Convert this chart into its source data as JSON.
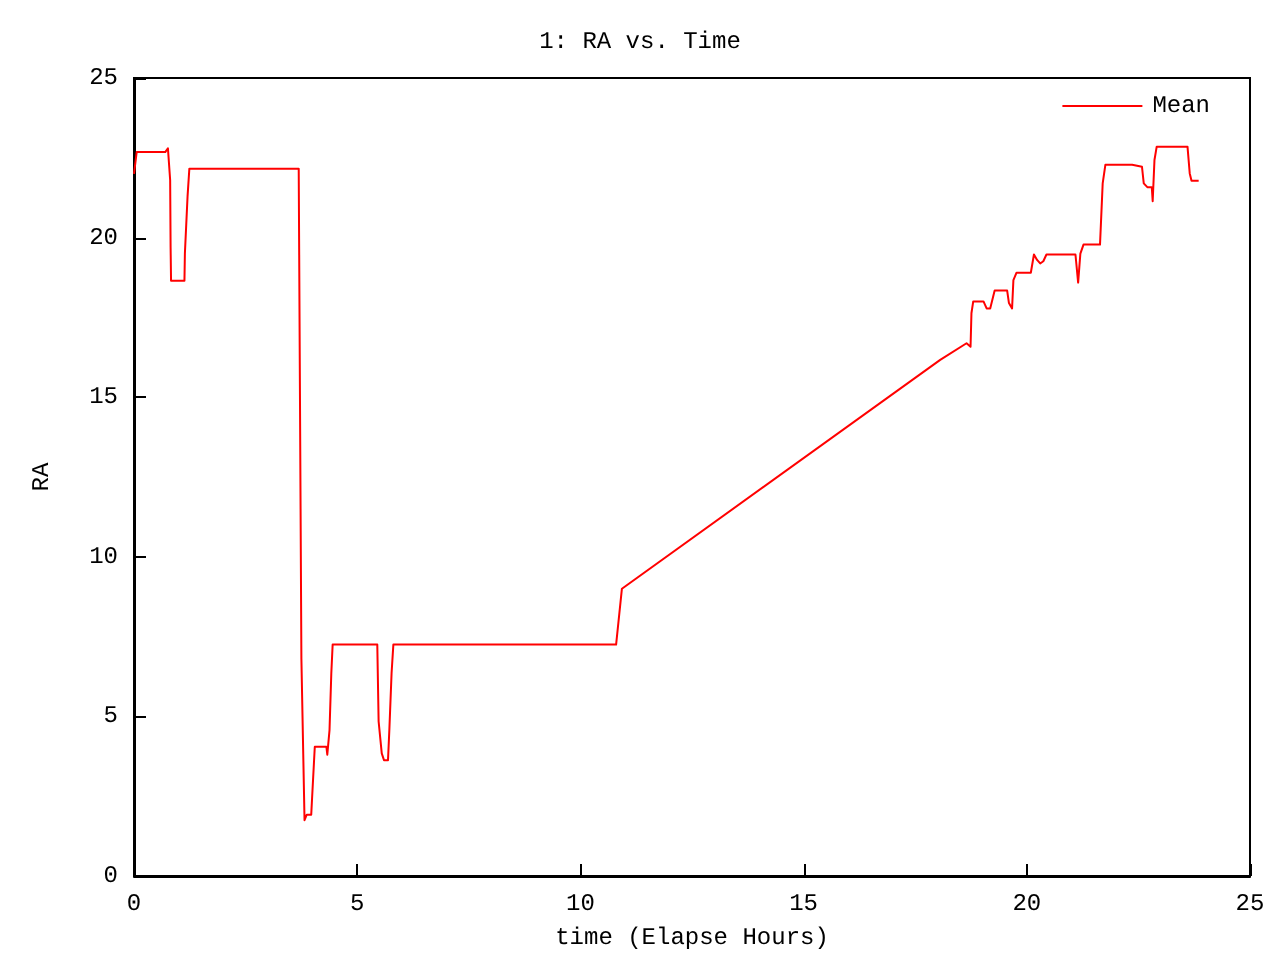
{
  "chart_data": {
    "type": "line",
    "title": "1: RA vs. Time",
    "xlabel": "time (Elapse Hours)",
    "ylabel": "RA",
    "xlim": [
      0,
      25
    ],
    "xticks": [
      0,
      5,
      10,
      15,
      20,
      25
    ],
    "ylim": [
      0,
      25
    ],
    "yticks": [
      0,
      5,
      10,
      15,
      20,
      25
    ],
    "grid": false,
    "legend": "top right",
    "marker": "none",
    "line_style": "solid",
    "series": [
      {
        "name": "Mean",
        "color": "#ff0000",
        "x": [
          0.0,
          0.02,
          0.06,
          0.7,
          0.76,
          0.81,
          0.82,
          0.83,
          0.85,
          1.13,
          1.14,
          1.2,
          1.24,
          3.69,
          3.72,
          3.75,
          3.82,
          3.87,
          3.97,
          3.99,
          4.05,
          4.31,
          4.33,
          4.38,
          4.42,
          4.45,
          5.45,
          5.48,
          5.55,
          5.6,
          5.69,
          5.72,
          5.77,
          5.81,
          10.8,
          10.93,
          18.06,
          18.65,
          18.74,
          18.76,
          18.8,
          19.03,
          19.1,
          19.18,
          19.28,
          19.56,
          19.6,
          19.67,
          19.7,
          19.77,
          20.09,
          20.16,
          20.23,
          20.3,
          20.37,
          20.44,
          21.09,
          21.15,
          21.2,
          21.27,
          21.64,
          21.7,
          21.76,
          22.36,
          22.58,
          22.62,
          22.7,
          22.8,
          22.82,
          22.86,
          22.91,
          23.6,
          23.65,
          23.69,
          23.85
        ],
        "values": [
          22.0,
          22.0,
          22.68,
          22.68,
          22.8,
          21.8,
          19.7,
          18.65,
          18.65,
          18.65,
          19.5,
          21.3,
          22.16,
          22.16,
          22.16,
          6.8,
          1.75,
          1.92,
          1.92,
          2.46,
          4.05,
          4.05,
          3.8,
          4.57,
          6.35,
          7.25,
          7.25,
          4.84,
          3.84,
          3.63,
          3.63,
          4.57,
          6.35,
          7.25,
          7.25,
          9.0,
          16.17,
          16.69,
          16.58,
          17.63,
          18.0,
          18.0,
          17.78,
          17.78,
          18.34,
          18.34,
          17.95,
          17.78,
          18.67,
          18.9,
          18.9,
          19.47,
          19.3,
          19.19,
          19.26,
          19.47,
          19.47,
          18.59,
          19.5,
          19.78,
          19.78,
          21.7,
          22.28,
          22.28,
          22.22,
          21.7,
          21.58,
          21.58,
          21.14,
          22.43,
          22.85,
          22.85,
          22.01,
          21.78,
          21.78
        ]
      }
    ]
  }
}
